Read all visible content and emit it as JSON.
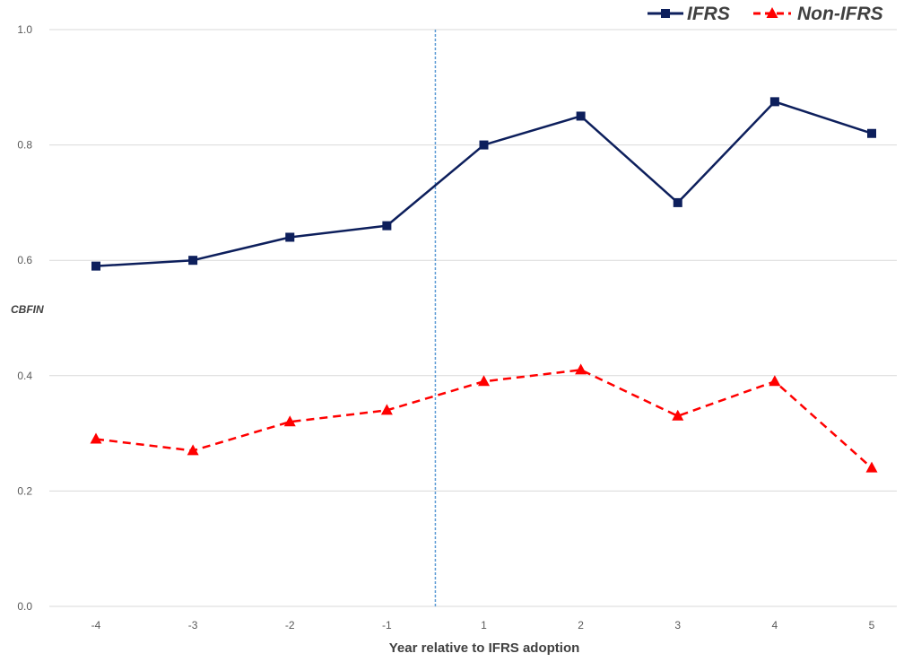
{
  "chart_data": {
    "type": "line",
    "title": "",
    "xlabel": "Year relative to IFRS adoption",
    "ylabel": "CBFIN",
    "categories": [
      "-4",
      "-3",
      "-2",
      "-1",
      "1",
      "2",
      "3",
      "4",
      "5"
    ],
    "ylim": [
      0.0,
      1.0
    ],
    "yticks": [
      "0.0",
      "0.2",
      "0.4",
      "0.6",
      "0.8",
      "1.0"
    ],
    "grid": "horizontal",
    "legend_position": "top-right",
    "adoption_marker_between": [
      "-1",
      "1"
    ],
    "series": [
      {
        "name": "IFRS",
        "color": "#0d1f5c",
        "line_style": "solid",
        "marker": "square",
        "values": [
          0.59,
          0.6,
          0.64,
          0.66,
          0.8,
          0.85,
          0.7,
          0.875,
          0.82
        ]
      },
      {
        "name": "Non-IFRS",
        "color": "#ff0000",
        "line_style": "dashed",
        "marker": "triangle",
        "values": [
          0.29,
          0.27,
          0.32,
          0.34,
          0.39,
          0.41,
          0.33,
          0.39,
          0.24
        ]
      }
    ],
    "colors": {
      "grid": "#d9d9d9",
      "adoption_line": "#5b9bd5"
    }
  }
}
